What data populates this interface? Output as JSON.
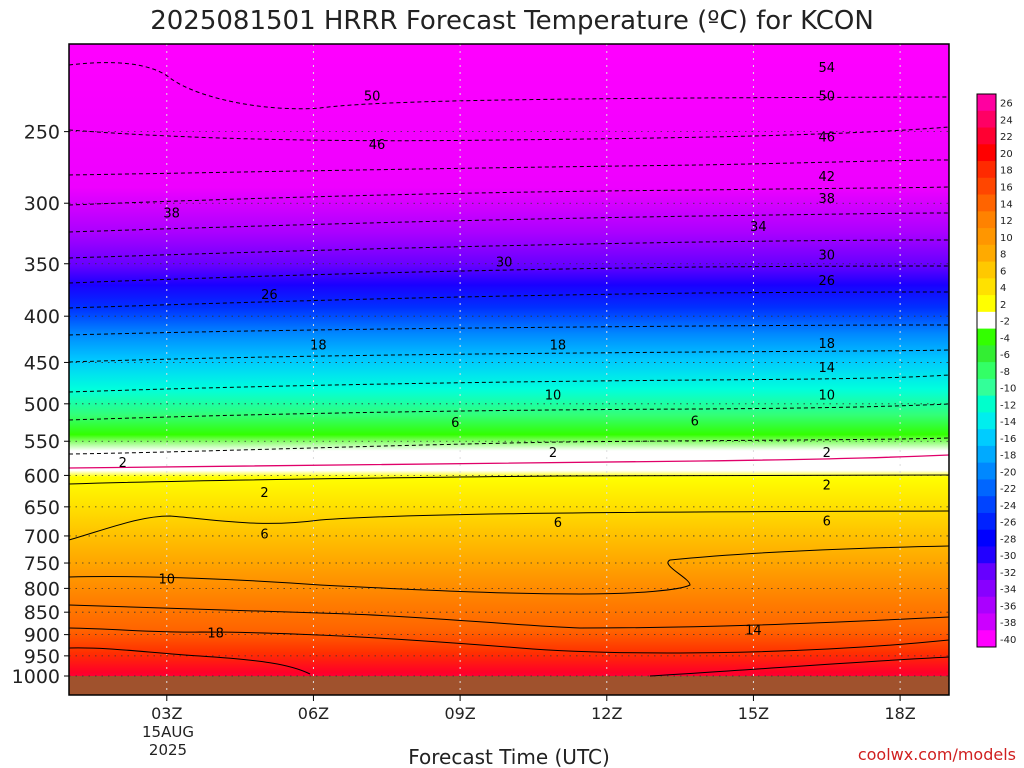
{
  "chart_data": {
    "type": "heatmap",
    "title": "2025081501 HRRR Forecast Temperature (ºC) for KCON",
    "xlabel": "Forecast Time (UTC)",
    "ylabel": "",
    "credit": "coolwx.com/models",
    "x_ticks": [
      {
        "hour": 3,
        "label": "03Z"
      },
      {
        "hour": 6,
        "label": "06Z"
      },
      {
        "hour": 9,
        "label": "09Z"
      },
      {
        "hour": 12,
        "label": "12Z"
      },
      {
        "hour": 15,
        "label": "15Z"
      },
      {
        "hour": 18,
        "label": "18Z"
      }
    ],
    "x_date_label": [
      "15AUG",
      "2025"
    ],
    "xlim": [
      1,
      19
    ],
    "y_ticks": [
      250,
      300,
      350,
      400,
      450,
      500,
      550,
      600,
      650,
      700,
      750,
      800,
      850,
      900,
      950,
      1000
    ],
    "ylim": [
      1000,
      200
    ],
    "y_scale": "log",
    "colorbar_labels": [
      26,
      24,
      22,
      20,
      18,
      16,
      14,
      12,
      10,
      8,
      6,
      4,
      2,
      -2,
      -4,
      -6,
      -8,
      -10,
      -12,
      -14,
      -16,
      -18,
      -20,
      -22,
      -24,
      -26,
      -28,
      -30,
      -32,
      -34,
      -36,
      -38,
      -40
    ],
    "colorbar_colors": [
      "#ff00a0",
      "#ff0064",
      "#ff0032",
      "#ff0000",
      "#ff2a00",
      "#ff4600",
      "#ff6400",
      "#ff8200",
      "#ff9600",
      "#ffaa00",
      "#ffc800",
      "#ffe100",
      "#ffff00",
      "#ffffff",
      "#33ff00",
      "#33ee33",
      "#33ff66",
      "#33ff99",
      "#00ffcc",
      "#00eeee",
      "#00ccff",
      "#00aaff",
      "#0088ff",
      "#0066ff",
      "#0044ff",
      "#0022ff",
      "#0000ff",
      "#2200ff",
      "#6600ff",
      "#8800ff",
      "#aa00ff",
      "#cc00ff",
      "#ff00ff"
    ],
    "contour_labels": [
      {
        "value": "54",
        "x": 16.5,
        "p": 212
      },
      {
        "value": "50",
        "x": 7.2,
        "p": 228
      },
      {
        "value": "50",
        "x": 16.5,
        "p": 228
      },
      {
        "value": "46",
        "x": 7.3,
        "p": 258
      },
      {
        "value": "46",
        "x": 16.5,
        "p": 253
      },
      {
        "value": "42",
        "x": 16.5,
        "p": 280
      },
      {
        "value": "38",
        "x": 3.1,
        "p": 307
      },
      {
        "value": "38",
        "x": 16.5,
        "p": 296
      },
      {
        "value": "34",
        "x": 15.1,
        "p": 318
      },
      {
        "value": "30",
        "x": 9.9,
        "p": 348
      },
      {
        "value": "30",
        "x": 16.5,
        "p": 342
      },
      {
        "value": "26",
        "x": 5.1,
        "p": 378
      },
      {
        "value": "26",
        "x": 16.5,
        "p": 365
      },
      {
        "value": "18",
        "x": 6.1,
        "p": 430
      },
      {
        "value": "18",
        "x": 11.0,
        "p": 430
      },
      {
        "value": "18",
        "x": 16.5,
        "p": 428
      },
      {
        "value": "14",
        "x": 16.5,
        "p": 455
      },
      {
        "value": "10",
        "x": 10.9,
        "p": 488
      },
      {
        "value": "10",
        "x": 16.5,
        "p": 488
      },
      {
        "value": "6",
        "x": 8.9,
        "p": 524
      },
      {
        "value": "6",
        "x": 13.8,
        "p": 522
      },
      {
        "value": "2",
        "x": 2.1,
        "p": 580
      },
      {
        "value": "2",
        "x": 10.9,
        "p": 565
      },
      {
        "value": "2",
        "x": 16.5,
        "p": 565
      },
      {
        "value": "2",
        "x": 5.0,
        "p": 626
      },
      {
        "value": "2",
        "x": 16.5,
        "p": 614
      },
      {
        "value": "6",
        "x": 11.0,
        "p": 676
      },
      {
        "value": "6",
        "x": 16.5,
        "p": 673
      },
      {
        "value": "6",
        "x": 5.0,
        "p": 696
      },
      {
        "value": "10",
        "x": 3.0,
        "p": 780
      },
      {
        "value": "18",
        "x": 4.0,
        "p": 895
      },
      {
        "value": "14",
        "x": 15.0,
        "p": 888
      }
    ]
  }
}
